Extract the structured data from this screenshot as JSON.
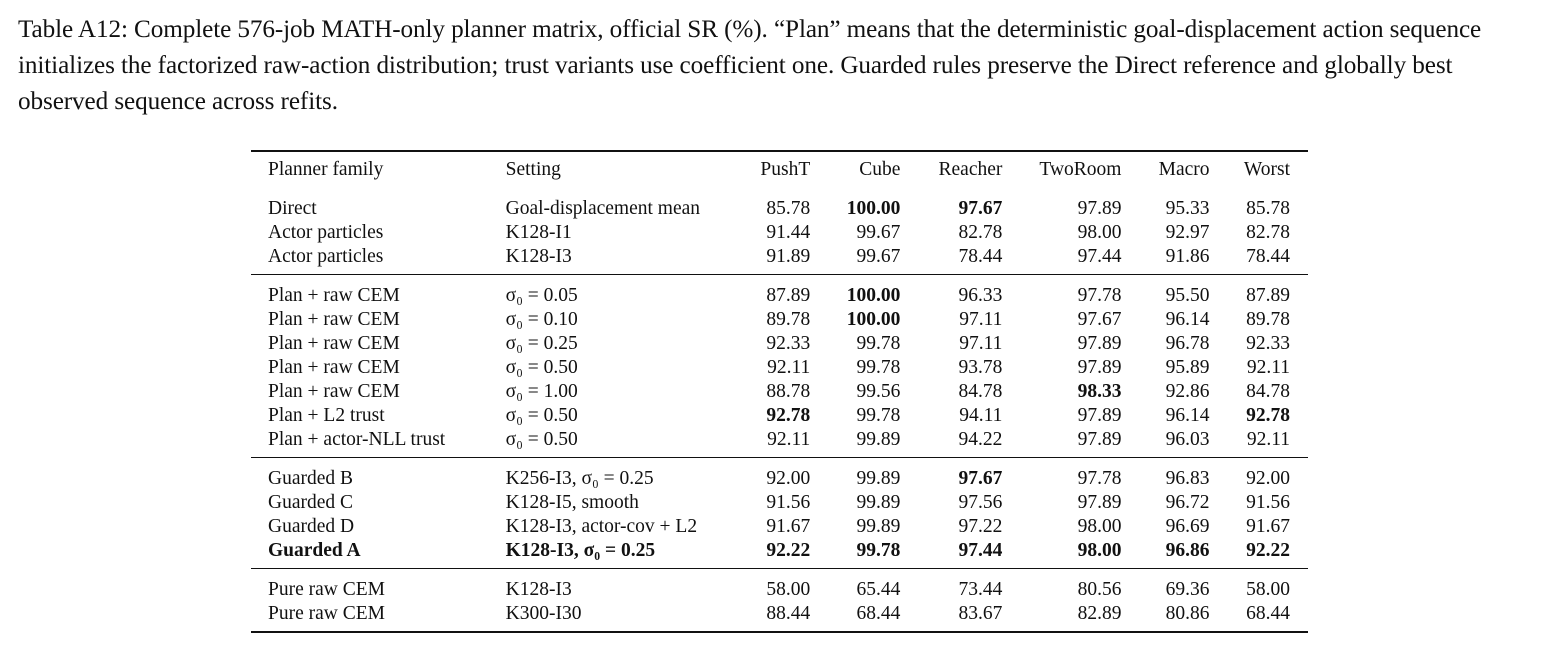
{
  "caption": "Table A12: Complete 576-job MATH-only planner matrix, official SR (%). “Plan” means that the deterministic goal-displacement action sequence initializes the factorized raw-action distribution; trust variants use coefficient one. Guarded rules preserve the Direct reference and globally best observed sequence across refits.",
  "table": {
    "headers": [
      "Planner family",
      "Setting",
      "PushT",
      "Cube",
      "Reacher",
      "TwoRoom",
      "Macro",
      "Worst"
    ],
    "groups": [
      {
        "rows": [
          {
            "family": "Direct",
            "setting": "Goal-displacement mean",
            "values": [
              "85.78",
              "100.00",
              "97.67",
              "97.89",
              "95.33",
              "85.78"
            ],
            "bold": [
              false,
              true,
              true,
              false,
              false,
              false
            ]
          },
          {
            "family": "Actor particles",
            "setting": "K128-I1",
            "values": [
              "91.44",
              "99.67",
              "82.78",
              "98.00",
              "92.97",
              "82.78"
            ],
            "bold": [
              false,
              false,
              false,
              false,
              false,
              false
            ]
          },
          {
            "family": "Actor particles",
            "setting": "K128-I3",
            "values": [
              "91.89",
              "99.67",
              "78.44",
              "97.44",
              "91.86",
              "78.44"
            ],
            "bold": [
              false,
              false,
              false,
              false,
              false,
              false
            ]
          }
        ]
      },
      {
        "rows": [
          {
            "family": "Plan + raw CEM",
            "setting": "σ₀ = 0.05",
            "values": [
              "87.89",
              "100.00",
              "96.33",
              "97.78",
              "95.50",
              "87.89"
            ],
            "bold": [
              false,
              true,
              false,
              false,
              false,
              false
            ]
          },
          {
            "family": "Plan + raw CEM",
            "setting": "σ₀ = 0.10",
            "values": [
              "89.78",
              "100.00",
              "97.11",
              "97.67",
              "96.14",
              "89.78"
            ],
            "bold": [
              false,
              true,
              false,
              false,
              false,
              false
            ]
          },
          {
            "family": "Plan + raw CEM",
            "setting": "σ₀ = 0.25",
            "values": [
              "92.33",
              "99.78",
              "97.11",
              "97.89",
              "96.78",
              "92.33"
            ],
            "bold": [
              false,
              false,
              false,
              false,
              false,
              false
            ]
          },
          {
            "family": "Plan + raw CEM",
            "setting": "σ₀ = 0.50",
            "values": [
              "92.11",
              "99.78",
              "93.78",
              "97.89",
              "95.89",
              "92.11"
            ],
            "bold": [
              false,
              false,
              false,
              false,
              false,
              false
            ]
          },
          {
            "family": "Plan + raw CEM",
            "setting": "σ₀ = 1.00",
            "values": [
              "88.78",
              "99.56",
              "84.78",
              "98.33",
              "92.86",
              "84.78"
            ],
            "bold": [
              false,
              false,
              false,
              true,
              false,
              false
            ]
          },
          {
            "family": "Plan + L2 trust",
            "setting": "σ₀ = 0.50",
            "values": [
              "92.78",
              "99.78",
              "94.11",
              "97.89",
              "96.14",
              "92.78"
            ],
            "bold": [
              true,
              false,
              false,
              false,
              false,
              true
            ]
          },
          {
            "family": "Plan + actor-NLL trust",
            "setting": "σ₀ = 0.50",
            "values": [
              "92.11",
              "99.89",
              "94.22",
              "97.89",
              "96.03",
              "92.11"
            ],
            "bold": [
              false,
              false,
              false,
              false,
              false,
              false
            ]
          }
        ]
      },
      {
        "rows": [
          {
            "family": "Guarded B",
            "setting": "K256-I3, σ₀ = 0.25",
            "values": [
              "92.00",
              "99.89",
              "97.67",
              "97.78",
              "96.83",
              "92.00"
            ],
            "bold": [
              false,
              false,
              true,
              false,
              false,
              false
            ]
          },
          {
            "family": "Guarded C",
            "setting": "K128-I5, smooth",
            "values": [
              "91.56",
              "99.89",
              "97.56",
              "97.89",
              "96.72",
              "91.56"
            ],
            "bold": [
              false,
              false,
              false,
              false,
              false,
              false
            ]
          },
          {
            "family": "Guarded D",
            "setting": "K128-I3, actor-cov + L2",
            "values": [
              "91.67",
              "99.89",
              "97.22",
              "98.00",
              "96.69",
              "91.67"
            ],
            "bold": [
              false,
              false,
              false,
              false,
              false,
              false
            ]
          },
          {
            "family": "Guarded A",
            "setting": "K128-I3, σ₀ = 0.25",
            "values": [
              "92.22",
              "99.78",
              "97.44",
              "98.00",
              "96.86",
              "92.22"
            ],
            "bold": [
              true,
              true,
              true,
              true,
              true,
              true
            ],
            "row_bold": true
          }
        ]
      },
      {
        "rows": [
          {
            "family": "Pure raw CEM",
            "setting": "K128-I3",
            "values": [
              "58.00",
              "65.44",
              "73.44",
              "80.56",
              "69.36",
              "58.00"
            ],
            "bold": [
              false,
              false,
              false,
              false,
              false,
              false
            ]
          },
          {
            "family": "Pure raw CEM",
            "setting": "K300-I30",
            "values": [
              "88.44",
              "68.44",
              "83.67",
              "82.89",
              "80.86",
              "68.44"
            ],
            "bold": [
              false,
              false,
              false,
              false,
              false,
              false
            ]
          }
        ]
      }
    ]
  }
}
